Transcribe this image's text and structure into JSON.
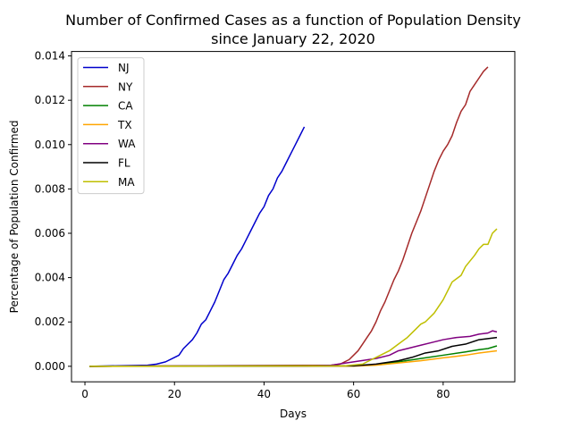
{
  "chart_data": {
    "type": "line",
    "title": "Number of Confirmed Cases as a function of Population Density",
    "subtitle": "since January 22, 2020",
    "xlabel": "Days",
    "ylabel": "Percentage of Population Confirmed",
    "xlim": [
      -3,
      96
    ],
    "ylim": [
      -0.0007,
      0.0142
    ],
    "xticks": [
      0,
      20,
      40,
      60,
      80
    ],
    "xtick_labels": [
      "0",
      "20",
      "40",
      "60",
      "80"
    ],
    "yticks": [
      0,
      0.002,
      0.004,
      0.006,
      0.008,
      0.01,
      0.012,
      0.014
    ],
    "ytick_labels": [
      "0.000",
      "0.002",
      "0.004",
      "0.006",
      "0.008",
      "0.010",
      "0.012",
      "0.014"
    ],
    "grid": false,
    "legend_position": "top-left",
    "series": [
      {
        "name": "NJ",
        "color": "#0000cc",
        "points": [
          [
            1,
            0
          ],
          [
            14,
            5e-05
          ],
          [
            16,
            0.0001
          ],
          [
            18,
            0.0002
          ],
          [
            20,
            0.0004
          ],
          [
            21,
            0.0005
          ],
          [
            22,
            0.0008
          ],
          [
            24,
            0.0012
          ],
          [
            25,
            0.0015
          ],
          [
            26,
            0.0019
          ],
          [
            27,
            0.0021
          ],
          [
            28,
            0.0025
          ],
          [
            29,
            0.0029
          ],
          [
            30,
            0.0034
          ],
          [
            31,
            0.0039
          ],
          [
            32,
            0.0042
          ],
          [
            33,
            0.0046
          ],
          [
            34,
            0.005
          ],
          [
            35,
            0.0053
          ],
          [
            36,
            0.0057
          ],
          [
            37,
            0.0061
          ],
          [
            38,
            0.0065
          ],
          [
            39,
            0.0069
          ],
          [
            40,
            0.0072
          ],
          [
            41,
            0.0077
          ],
          [
            42,
            0.008
          ],
          [
            43,
            0.0085
          ],
          [
            44,
            0.0088
          ],
          [
            45,
            0.0092
          ],
          [
            46,
            0.0096
          ],
          [
            47,
            0.01
          ],
          [
            48,
            0.0104
          ],
          [
            49,
            0.0108
          ]
        ]
      },
      {
        "name": "NY",
        "color": "#a52a2a",
        "points": [
          [
            1,
            0
          ],
          [
            55,
            5e-05
          ],
          [
            57,
            0.0001
          ],
          [
            58,
            0.0002
          ],
          [
            59,
            0.0003
          ],
          [
            60,
            0.0005
          ],
          [
            61,
            0.0007
          ],
          [
            62,
            0.001
          ],
          [
            63,
            0.0013
          ],
          [
            64,
            0.0016
          ],
          [
            65,
            0.002
          ],
          [
            66,
            0.0025
          ],
          [
            67,
            0.0029
          ],
          [
            68,
            0.0034
          ],
          [
            69,
            0.0039
          ],
          [
            70,
            0.0043
          ],
          [
            71,
            0.0048
          ],
          [
            72,
            0.0054
          ],
          [
            73,
            0.006
          ],
          [
            74,
            0.0065
          ],
          [
            75,
            0.007
          ],
          [
            76,
            0.0076
          ],
          [
            77,
            0.0082
          ],
          [
            78,
            0.0088
          ],
          [
            79,
            0.0093
          ],
          [
            80,
            0.0097
          ],
          [
            81,
            0.01
          ],
          [
            82,
            0.0104
          ],
          [
            83,
            0.011
          ],
          [
            84,
            0.0115
          ],
          [
            85,
            0.0118
          ],
          [
            86,
            0.0124
          ],
          [
            87,
            0.0127
          ],
          [
            88,
            0.013
          ],
          [
            89,
            0.0133
          ],
          [
            90,
            0.0135
          ]
        ]
      },
      {
        "name": "CA",
        "color": "#008000",
        "points": [
          [
            1,
            0
          ],
          [
            60,
            2e-05
          ],
          [
            65,
            8e-05
          ],
          [
            70,
            0.0002
          ],
          [
            75,
            0.00035
          ],
          [
            80,
            0.0005
          ],
          [
            85,
            0.00065
          ],
          [
            88,
            0.00075
          ],
          [
            90,
            0.0008
          ],
          [
            92,
            0.00092
          ]
        ]
      },
      {
        "name": "TX",
        "color": "#ffa500",
        "points": [
          [
            1,
            0
          ],
          [
            60,
            1e-05
          ],
          [
            65,
            5e-05
          ],
          [
            70,
            0.00015
          ],
          [
            75,
            0.00025
          ],
          [
            80,
            0.00038
          ],
          [
            85,
            0.0005
          ],
          [
            88,
            0.0006
          ],
          [
            90,
            0.00065
          ],
          [
            92,
            0.0007
          ]
        ]
      },
      {
        "name": "WA",
        "color": "#800080",
        "points": [
          [
            1,
            0
          ],
          [
            50,
            2e-05
          ],
          [
            55,
            5e-05
          ],
          [
            60,
            0.0002
          ],
          [
            65,
            0.00035
          ],
          [
            68,
            0.0005
          ],
          [
            70,
            0.0007
          ],
          [
            72,
            0.0008
          ],
          [
            75,
            0.00095
          ],
          [
            78,
            0.0011
          ],
          [
            80,
            0.0012
          ],
          [
            83,
            0.0013
          ],
          [
            86,
            0.00135
          ],
          [
            88,
            0.00145
          ],
          [
            90,
            0.0015
          ],
          [
            91,
            0.0016
          ],
          [
            92,
            0.00155
          ]
        ]
      },
      {
        "name": "FL",
        "color": "#000000",
        "points": [
          [
            1,
            0
          ],
          [
            60,
            2e-05
          ],
          [
            65,
            0.0001
          ],
          [
            70,
            0.00025
          ],
          [
            73,
            0.0004
          ],
          [
            76,
            0.0006
          ],
          [
            79,
            0.0007
          ],
          [
            82,
            0.0009
          ],
          [
            85,
            0.001
          ],
          [
            88,
            0.0012
          ],
          [
            90,
            0.00125
          ],
          [
            92,
            0.0013
          ]
        ]
      },
      {
        "name": "MA",
        "color": "#bfbf00",
        "points": [
          [
            1,
            0
          ],
          [
            58,
            2e-05
          ],
          [
            62,
            0.0001
          ],
          [
            64,
            0.0003
          ],
          [
            66,
            0.0005
          ],
          [
            68,
            0.0007
          ],
          [
            70,
            0.001
          ],
          [
            72,
            0.0013
          ],
          [
            74,
            0.0017
          ],
          [
            75,
            0.0019
          ],
          [
            76,
            0.002
          ],
          [
            78,
            0.0024
          ],
          [
            80,
            0.003
          ],
          [
            81,
            0.0034
          ],
          [
            82,
            0.0038
          ],
          [
            84,
            0.0041
          ],
          [
            85,
            0.0045
          ],
          [
            87,
            0.005
          ],
          [
            88,
            0.0053
          ],
          [
            89,
            0.0055
          ],
          [
            90,
            0.0055
          ],
          [
            91,
            0.006
          ],
          [
            92,
            0.0062
          ]
        ]
      }
    ]
  }
}
